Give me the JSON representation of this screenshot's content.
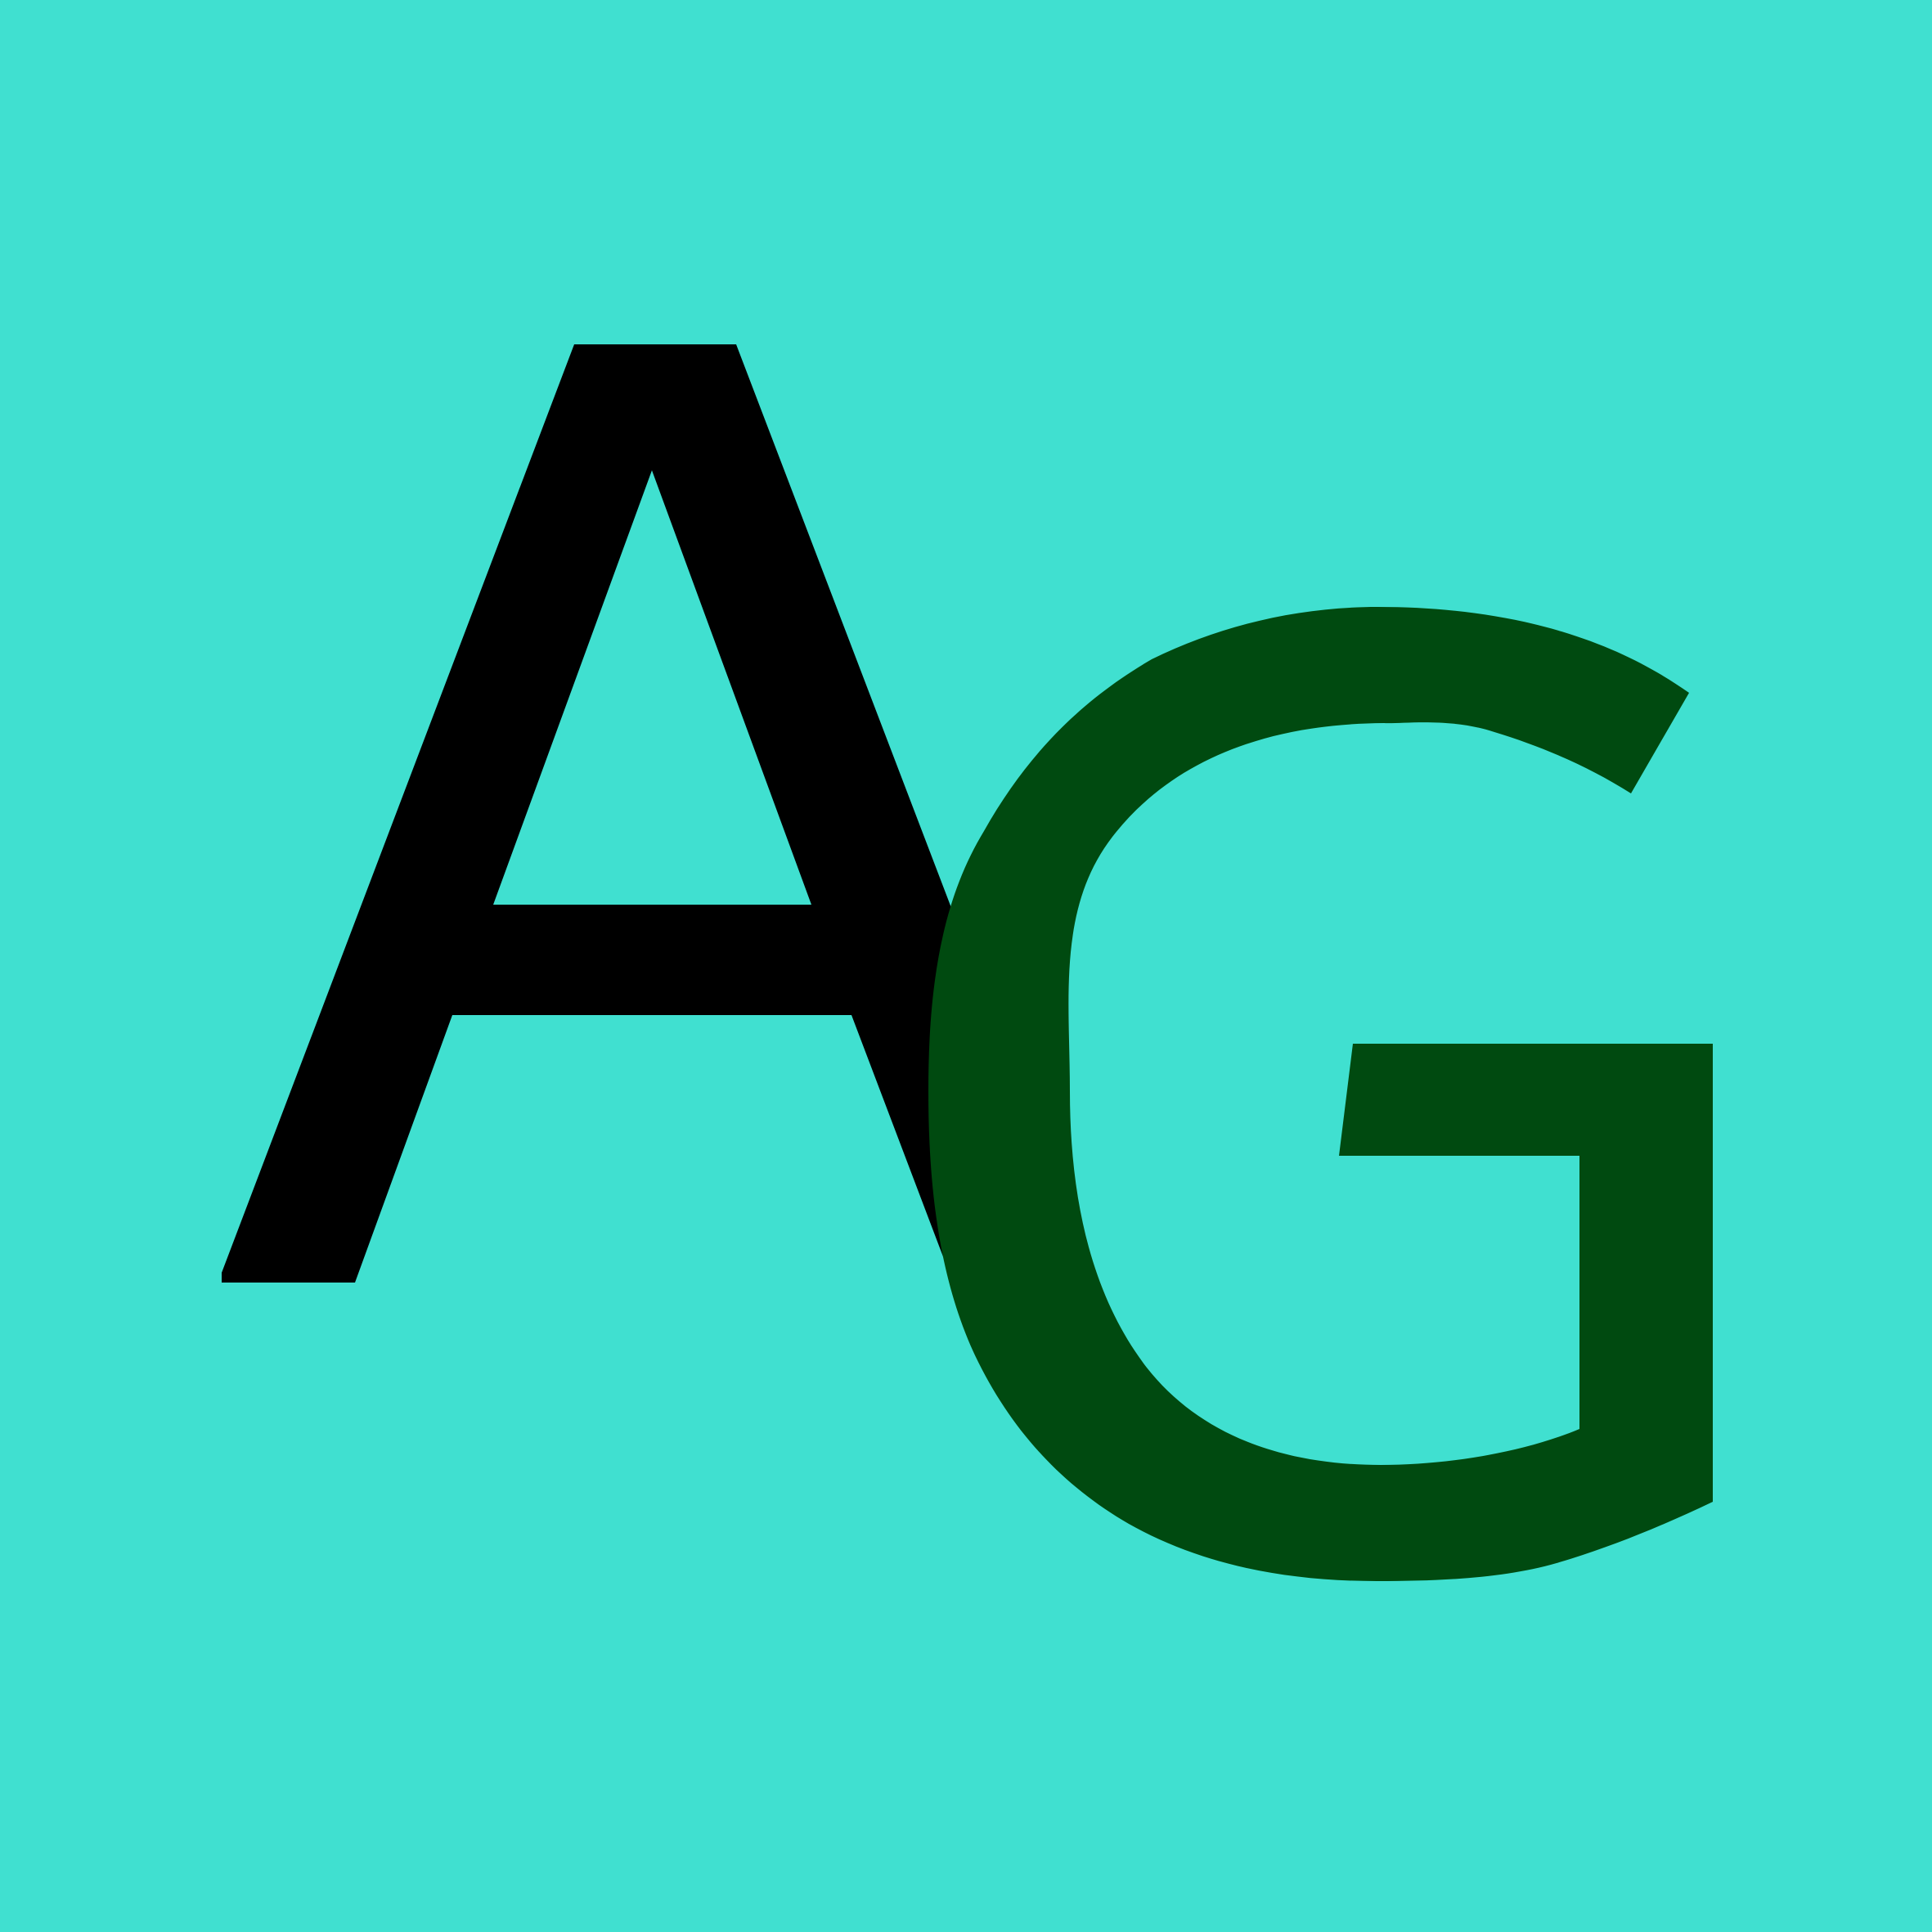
{
  "logo": {
    "first_letter": "A",
    "second_letter": "G",
    "background_color": "#40E0D0",
    "first_letter_color": "#000000",
    "second_letter_color": "#004A10"
  }
}
